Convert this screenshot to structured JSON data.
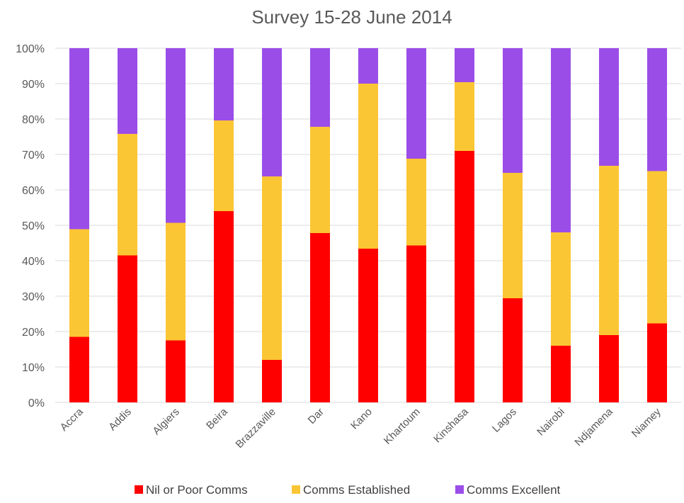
{
  "chart_data": {
    "type": "bar",
    "stacked": true,
    "percent": true,
    "title": "Survey 15-28 June 2014",
    "xlabel": "",
    "ylabel": "",
    "ylim": [
      0,
      100
    ],
    "yticks": [
      "0%",
      "10%",
      "20%",
      "30%",
      "40%",
      "50%",
      "60%",
      "70%",
      "80%",
      "90%",
      "100%"
    ],
    "grid": true,
    "legend_position": "bottom",
    "categories": [
      "Accra",
      "Addis",
      "Algiers",
      "Beira",
      "Brazzaville",
      "Dar",
      "Kano",
      "Khartoum",
      "Kinshasa",
      "Lagos",
      "Nairobi",
      "Ndjamena",
      "Niamey"
    ],
    "series": [
      {
        "name": "Nil or Poor Comms",
        "color": "#ff0000",
        "values": [
          18.5,
          41.5,
          17.5,
          54,
          12,
          47.8,
          43.4,
          44.3,
          71,
          29.4,
          16,
          19,
          22.3
        ]
      },
      {
        "name": "Comms Established",
        "color": "#fbc634",
        "values": [
          30.4,
          34.3,
          33.2,
          25.6,
          51.8,
          30,
          46.6,
          24.5,
          19.4,
          35.4,
          32,
          47.8,
          43
        ]
      },
      {
        "name": "Comms Excellent",
        "color": "#9b4de8",
        "values": [
          51.1,
          24.2,
          49.3,
          20.4,
          36.2,
          22.2,
          10,
          31.2,
          9.6,
          35.2,
          52,
          33.2,
          34.7
        ]
      }
    ]
  }
}
